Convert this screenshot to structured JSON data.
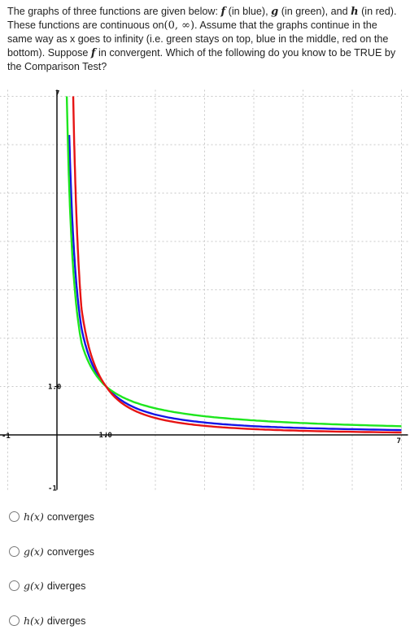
{
  "question": {
    "p1": "The graphs of three functions are given below: ",
    "f": "f",
    "p2": " (in blue), ",
    "g": "g",
    "p3": " (in green), and ",
    "h": "h",
    "p4": " (in red). These functions are continuous on",
    "interval": "(0, ∞)",
    "p5": ". Assume that the graphs continue in the same way as x goes to infinity (i.e. green stays on top, blue in the middle, red on the bottom). Suppose ",
    "f2": "f",
    "p6": " in convergent. Which of the following do you know to be TRUE by the Comparison Test?"
  },
  "graph": {
    "x_min_label": "-1",
    "x_max_label": "7",
    "y_top_label": "7",
    "y_bottom_label": "-1",
    "x_one_label": "1.0",
    "y_one_label": "1.0",
    "colors": {
      "f": "#1414e6",
      "g": "#1ee61e",
      "h": "#e61414"
    }
  },
  "chart_data": {
    "type": "line",
    "xlim": [
      -1,
      7
    ],
    "ylim": [
      -1,
      7
    ],
    "grid": true,
    "series": [
      {
        "name": "f",
        "color": "#1414e6",
        "x": [
          0.25,
          0.5,
          1,
          2,
          4,
          7
        ],
        "y": [
          6.2,
          2.2,
          1.0,
          0.42,
          0.18,
          0.1
        ]
      },
      {
        "name": "g",
        "color": "#1ee61e",
        "x": [
          0.2,
          0.5,
          1,
          2,
          4,
          7
        ],
        "y": [
          7.0,
          1.9,
          1.0,
          0.55,
          0.3,
          0.18
        ]
      },
      {
        "name": "h",
        "color": "#e61414",
        "x": [
          0.33,
          0.5,
          1,
          2,
          4,
          7
        ],
        "y": [
          7.0,
          2.6,
          1.0,
          0.35,
          0.12,
          0.05
        ]
      }
    ]
  },
  "options": [
    {
      "fn": "h(x)",
      "word": "converges"
    },
    {
      "fn": "g(x)",
      "word": "converges"
    },
    {
      "fn": "g(x)",
      "word": "diverges"
    },
    {
      "fn": "h(x)",
      "word": "diverges"
    }
  ]
}
